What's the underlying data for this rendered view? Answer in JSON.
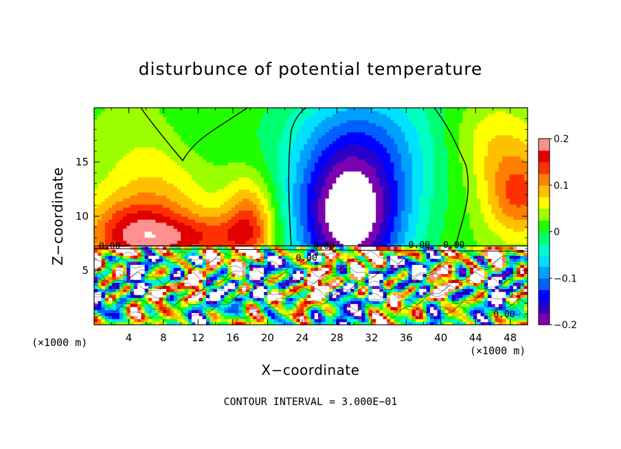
{
  "chart_data": {
    "type": "heatmap",
    "title": "disturbunce of potential temperature",
    "xlabel": "X−coordinate",
    "ylabel": "Z−coordinate",
    "x_unit_left": "(×1000 m)",
    "x_unit_right": "(×1000 m)",
    "footer": "CONTOUR INTERVAL = 3.000E−01",
    "xlim": [
      0,
      50
    ],
    "ylim": [
      0,
      20
    ],
    "x_ticks": [
      4,
      8,
      12,
      16,
      20,
      24,
      28,
      32,
      36,
      40,
      44,
      48
    ],
    "y_ticks": [
      5,
      10,
      15
    ],
    "colorbar": {
      "min": -0.2,
      "max": 0.2,
      "ticks": [
        {
          "value": 0.2,
          "label": "0.2"
        },
        {
          "value": 0.1,
          "label": "0.1"
        },
        {
          "value": 0,
          "label": "0"
        },
        {
          "value": -0.1,
          "label": "−0.1"
        },
        {
          "value": -0.2,
          "label": "−0.2"
        }
      ],
      "colors": [
        "#7b00b0",
        "#2a00c8",
        "#0000ff",
        "#0060ff",
        "#00a0ff",
        "#00e0ff",
        "#00ffc0",
        "#00ff70",
        "#20ff00",
        "#9cff00",
        "#ffff00",
        "#ffc000",
        "#ff8000",
        "#ff3000",
        "#e00000",
        "#ff9090"
      ]
    },
    "contour_labels": [
      {
        "text": "0.00",
        "x": 1.8,
        "y": 7.0
      },
      {
        "text": "0.00",
        "x": 26.5,
        "y": 7.0
      },
      {
        "text": "0.00",
        "x": 24.5,
        "y": 5.9
      },
      {
        "text": "0.00",
        "x": 37.5,
        "y": 7.1
      },
      {
        "text": "0.00",
        "x": 41.5,
        "y": 7.1
      },
      {
        "text": "0.00",
        "x": 47.3,
        "y": 0.7
      }
    ],
    "field_description": "upper layer (z>7.3): positive anomaly near x=0-21 below z=13, negative anomaly centered x~29 z~10 (to -0.2), weak negative/zero elsewhere; lower layer (z<7.3): turbulent mixed values from -0.2 to 0.2"
  }
}
